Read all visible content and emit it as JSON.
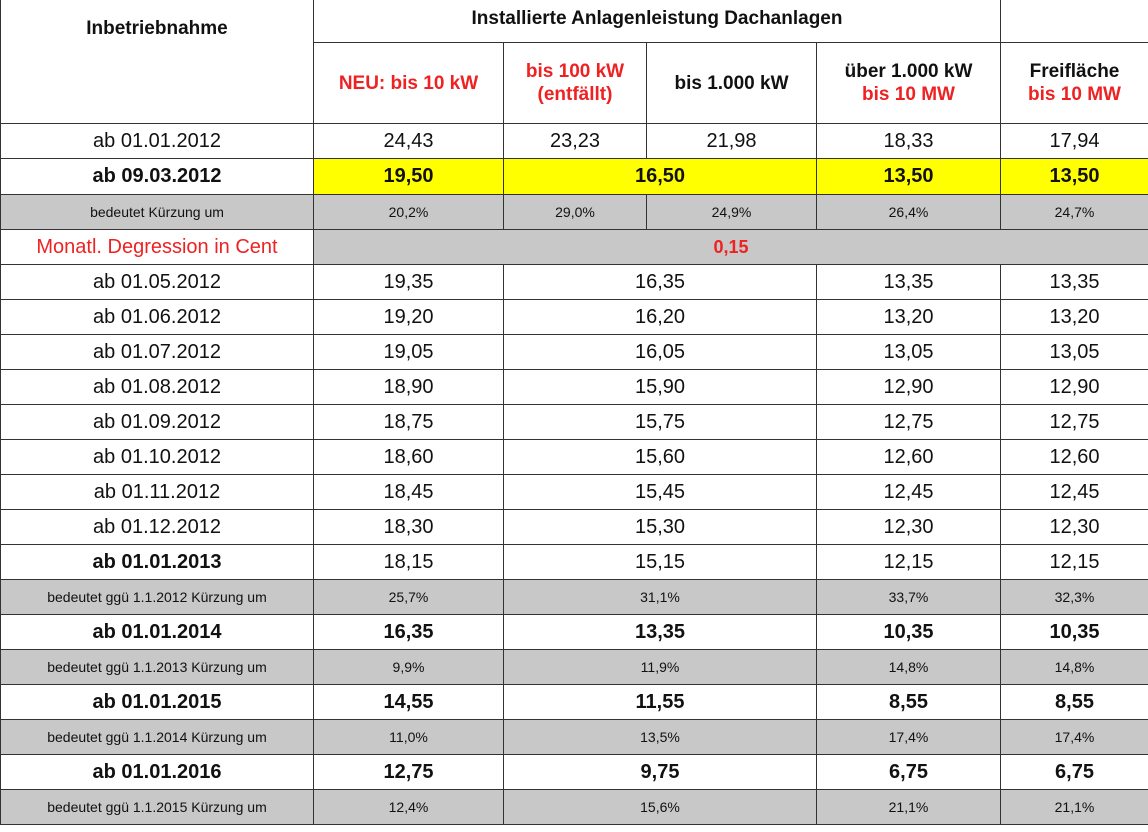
{
  "header": {
    "first_col": "Inbetriebnahme",
    "group_title": "Installierte Anlagenleistung Dachanlagen",
    "col1": "NEU: bis 10 kW",
    "col2_line1": "bis 100 kW",
    "col2_line2": "(entfällt)",
    "col3": "bis 1.000 kW",
    "col4_line1": "über 1.000 kW",
    "col4_line2": "bis 10 MW",
    "col5_line1": "Freifläche",
    "col5_line2": "bis 10 MW"
  },
  "row_2012_01": {
    "label": "ab 01.01.2012",
    "v1": "24,43",
    "v2": "23,23",
    "v3": "21,98",
    "v4": "18,33",
    "v5": "17,94"
  },
  "row_2012_03": {
    "label": "ab 09.03.2012",
    "v1": "19,50",
    "v23": "16,50",
    "v4": "13,50",
    "v5": "13,50"
  },
  "cut_2012_03": {
    "label": "bedeutet Kürzung um",
    "v1": "20,2%",
    "v2": "29,0%",
    "v3": "24,9%",
    "v4": "26,4%",
    "v5": "24,7%"
  },
  "degression": {
    "label": "Monatl. Degression in Cent",
    "value": "0,15"
  },
  "monthly_rows": [
    {
      "label": "ab 01.05.2012",
      "v1": "19,35",
      "v23": "16,35",
      "v4": "13,35",
      "v5": "13,35"
    },
    {
      "label": "ab 01.06.2012",
      "v1": "19,20",
      "v23": "16,20",
      "v4": "13,20",
      "v5": "13,20"
    },
    {
      "label": "ab 01.07.2012",
      "v1": "19,05",
      "v23": "16,05",
      "v4": "13,05",
      "v5": "13,05"
    },
    {
      "label": "ab 01.08.2012",
      "v1": "18,90",
      "v23": "15,90",
      "v4": "12,90",
      "v5": "12,90"
    },
    {
      "label": "ab 01.09.2012",
      "v1": "18,75",
      "v23": "15,75",
      "v4": "12,75",
      "v5": "12,75"
    },
    {
      "label": "ab 01.10.2012",
      "v1": "18,60",
      "v23": "15,60",
      "v4": "12,60",
      "v5": "12,60"
    },
    {
      "label": "ab 01.11.2012",
      "v1": "18,45",
      "v23": "15,45",
      "v4": "12,45",
      "v5": "12,45"
    },
    {
      "label": "ab 01.12.2012",
      "v1": "18,30",
      "v23": "15,30",
      "v4": "12,30",
      "v5": "12,30"
    }
  ],
  "row_2013": {
    "label": "ab 01.01.2013",
    "v1": "18,15",
    "v23": "15,15",
    "v4": "12,15",
    "v5": "12,15"
  },
  "cut_2013": {
    "label": "bedeutet ggü 1.1.2012 Kürzung um",
    "v1": "25,7%",
    "v23": "31,1%",
    "v4": "33,7%",
    "v5": "32,3%"
  },
  "row_2014": {
    "label": "ab 01.01.2014",
    "v1": "16,35",
    "v23": "13,35",
    "v4": "10,35",
    "v5": "10,35"
  },
  "cut_2014": {
    "label": "bedeutet ggü 1.1.2013 Kürzung um",
    "v1": "9,9%",
    "v23": "11,9%",
    "v4": "14,8%",
    "v5": "14,8%"
  },
  "row_2015": {
    "label": "ab 01.01.2015",
    "v1": "14,55",
    "v23": "11,55",
    "v4": "8,55",
    "v5": "8,55"
  },
  "cut_2015": {
    "label": "bedeutet ggü 1.1.2014 Kürzung um",
    "v1": "11,0%",
    "v23": "13,5%",
    "v4": "17,4%",
    "v5": "17,4%"
  },
  "row_2016": {
    "label": "ab 01.01.2016",
    "v1": "12,75",
    "v23": "9,75",
    "v4": "6,75",
    "v5": "6,75"
  },
  "cut_2016": {
    "label": "bedeutet ggü 1.1.2015 Kürzung um",
    "v1": "12,4%",
    "v23": "15,6%",
    "v4": "21,1%",
    "v5": "21,1%"
  },
  "colors": {
    "highlight": "#ffff00",
    "gray_row": "#c8c8c8",
    "red_text": "#ee2222"
  }
}
